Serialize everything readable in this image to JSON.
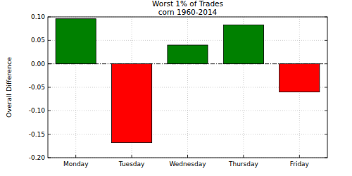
{
  "chart_data": {
    "type": "bar",
    "title": "Worst 1% of Trades",
    "subtitle": "corn 1960-2014",
    "ylabel": "Overall Difference",
    "categories": [
      "Monday",
      "Tuesday",
      "Wednesday",
      "Thursday",
      "Friday"
    ],
    "values": [
      0.096,
      -0.168,
      0.04,
      0.083,
      -0.06
    ],
    "colors": [
      "#008000",
      "#ff0000",
      "#008000",
      "#008000",
      "#ff0000"
    ],
    "ylim": [
      -0.2,
      0.1
    ],
    "yticks": [
      {
        "value": -0.2,
        "label": "-0.20"
      },
      {
        "value": -0.15,
        "label": "-0.15"
      },
      {
        "value": -0.1,
        "label": "-0.10"
      },
      {
        "value": -0.05,
        "label": "-0.05"
      },
      {
        "value": 0,
        "label": "0.00"
      },
      {
        "value": 0.05,
        "label": "0.05"
      },
      {
        "value": 0.1,
        "label": "0.10"
      }
    ],
    "grid": true
  }
}
